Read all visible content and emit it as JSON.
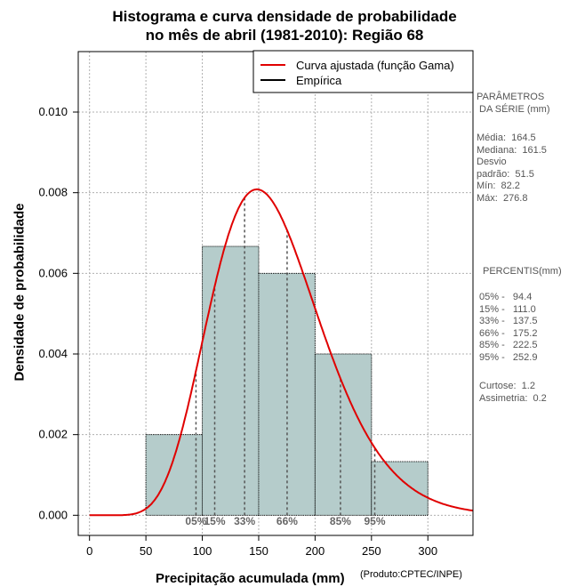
{
  "title": {
    "line1": "Histograma e curva densidade de probabilidade",
    "line2": "no mês de abril (1981-2010): Região 68"
  },
  "credit": "(Produto:CPTEC/INPE)",
  "chart_data": {
    "type": "histogram",
    "xlabel": "Precipitação acumulada (mm)",
    "ylabel": "Densidade de probabilidade",
    "xlim": [
      -10,
      340
    ],
    "ylim": [
      -0.0005,
      0.0115
    ],
    "xticks": [
      0,
      50,
      100,
      150,
      200,
      250,
      300
    ],
    "yticks": [
      0.0,
      0.002,
      0.004,
      0.006,
      0.008,
      0.01
    ],
    "ytick_labels": [
      "0.000",
      "0.002",
      "0.004",
      "0.006",
      "0.008",
      "0.010"
    ],
    "grid": true,
    "bins": [
      {
        "start": 50,
        "end": 100,
        "density": 0.002
      },
      {
        "start": 100,
        "end": 150,
        "density": 0.00667
      },
      {
        "start": 150,
        "end": 200,
        "density": 0.006
      },
      {
        "start": 200,
        "end": 250,
        "density": 0.004
      },
      {
        "start": 250,
        "end": 300,
        "density": 0.00133
      }
    ],
    "bar_color": "#b5cccb",
    "gamma_fit": {
      "mean": 164.5,
      "sd": 51.5,
      "color": "#e00000"
    },
    "legend": [
      {
        "label": "Curva ajustada (função Gama)",
        "color": "#e00000"
      },
      {
        "label": "Empírica",
        "color": "#000000"
      }
    ],
    "percentiles": [
      {
        "label": "05%",
        "value": 94.4
      },
      {
        "label": "15%",
        "value": 111.0
      },
      {
        "label": "33%",
        "value": 137.5
      },
      {
        "label": "66%",
        "value": 175.2
      },
      {
        "label": "85%",
        "value": 222.5
      },
      {
        "label": "95%",
        "value": 252.9
      }
    ]
  },
  "stats_panel": {
    "header": "PARÂMETROS\n DA SÉRIE (mm)",
    "params": "Média:  164.5\nMediana:  161.5\nDesvio\npadrão:  51.5\nMín:  82.2\nMáx:  276.8",
    "percentis_header": "PERCENTIS(mm)",
    "percentis": "05% -   94.4\n15% -   111.0\n33% -   137.5\n66% -   175.2\n85% -   222.5\n95% -   252.9",
    "extra": "Curtose:  1.2\nAssimetria:  0.2"
  }
}
